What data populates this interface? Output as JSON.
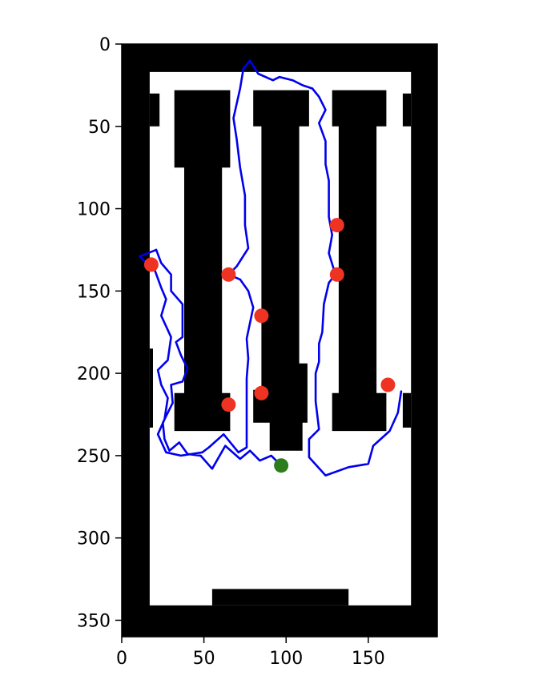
{
  "chart_data": {
    "type": "scatter",
    "title": "",
    "xlabel": "",
    "ylabel": "",
    "xlim": [
      0,
      192
    ],
    "ylim": [
      360,
      0
    ],
    "y_inverted": true,
    "grid": false,
    "xticks": [
      0,
      50,
      100,
      150
    ],
    "yticks": [
      0,
      50,
      100,
      150,
      200,
      250,
      300,
      350
    ],
    "occupancy_map": {
      "description": "background map; black = obstacle (occupied), white = free space",
      "free_color": "#ffffff",
      "obstacle_color": "#000000",
      "free_regions": [
        [
          [
            17,
            17
          ],
          [
            176,
            17
          ],
          [
            176,
            341
          ],
          [
            17,
            341
          ]
        ]
      ],
      "obstacles": [
        [
          [
            55,
            331
          ],
          [
            138,
            331
          ],
          [
            138,
            341
          ],
          [
            55,
            341
          ]
        ],
        [
          [
            17,
            30
          ],
          [
            23,
            30
          ],
          [
            23,
            50
          ],
          [
            17,
            50
          ]
        ],
        [
          [
            17,
            185
          ],
          [
            19,
            185
          ],
          [
            19,
            233
          ],
          [
            17,
            233
          ]
        ],
        [
          [
            171,
            30
          ],
          [
            176,
            30
          ],
          [
            176,
            50
          ],
          [
            171,
            50
          ]
        ],
        [
          [
            171,
            212
          ],
          [
            176,
            212
          ],
          [
            176,
            233
          ],
          [
            171,
            233
          ]
        ],
        [
          [
            32,
            28
          ],
          [
            66,
            28
          ],
          [
            66,
            75
          ],
          [
            61,
            75
          ],
          [
            61,
            212
          ],
          [
            66,
            212
          ],
          [
            66,
            235
          ],
          [
            32,
            235
          ],
          [
            32,
            212
          ],
          [
            38,
            212
          ],
          [
            38,
            75
          ],
          [
            32,
            75
          ]
        ],
        [
          [
            80,
            28
          ],
          [
            114,
            28
          ],
          [
            114,
            50
          ],
          [
            108,
            50
          ],
          [
            108,
            194
          ],
          [
            113,
            194
          ],
          [
            113,
            230
          ],
          [
            110,
            230
          ],
          [
            110,
            247
          ],
          [
            90,
            247
          ],
          [
            90,
            230
          ],
          [
            80,
            230
          ],
          [
            80,
            210
          ],
          [
            85,
            210
          ],
          [
            85,
            50
          ],
          [
            80,
            50
          ]
        ],
        [
          [
            128,
            28
          ],
          [
            161,
            28
          ],
          [
            161,
            50
          ],
          [
            155,
            50
          ],
          [
            155,
            212
          ],
          [
            161,
            212
          ],
          [
            161,
            235
          ],
          [
            128,
            235
          ],
          [
            128,
            212
          ],
          [
            132,
            212
          ],
          [
            132,
            50
          ],
          [
            128,
            50
          ]
        ]
      ]
    },
    "series": [
      {
        "type": "line",
        "color": "#0000ee",
        "points": [
          [
            96,
            255
          ],
          [
            91,
            250
          ],
          [
            84,
            253
          ],
          [
            78,
            247
          ],
          [
            72,
            252
          ],
          [
            63,
            244
          ],
          [
            55,
            258
          ],
          [
            48,
            250
          ],
          [
            40,
            249
          ],
          [
            35,
            242
          ],
          [
            29,
            247
          ],
          [
            26,
            240
          ],
          [
            25,
            230
          ],
          [
            31,
            218
          ],
          [
            30,
            207
          ],
          [
            37,
            205
          ],
          [
            40,
            197
          ],
          [
            36,
            189
          ],
          [
            33,
            181
          ],
          [
            37,
            178
          ],
          [
            37,
            158
          ],
          [
            30,
            150
          ],
          [
            30,
            140
          ],
          [
            24,
            133
          ],
          [
            21,
            125
          ],
          [
            16,
            127
          ],
          [
            11,
            129
          ],
          [
            16,
            134
          ],
          [
            20,
            137
          ],
          [
            24,
            148
          ],
          [
            27,
            155
          ],
          [
            24,
            165
          ],
          [
            30,
            178
          ],
          [
            28,
            192
          ],
          [
            22,
            198
          ],
          [
            24,
            207
          ],
          [
            28,
            215
          ],
          [
            26,
            228
          ],
          [
            22,
            237
          ],
          [
            27,
            248
          ],
          [
            36,
            250
          ],
          [
            49,
            248
          ],
          [
            53,
            245
          ],
          [
            62,
            237
          ],
          [
            71,
            248
          ],
          [
            76,
            245
          ],
          [
            76,
            226
          ],
          [
            76,
            203
          ],
          [
            77,
            191
          ],
          [
            76,
            179
          ],
          [
            80,
            160
          ],
          [
            77,
            150
          ],
          [
            72,
            143
          ],
          [
            65,
            140
          ],
          [
            70,
            135
          ],
          [
            77,
            124
          ],
          [
            75,
            110
          ],
          [
            75,
            92
          ],
          [
            72,
            75
          ],
          [
            70,
            58
          ],
          [
            68,
            45
          ],
          [
            72,
            27
          ],
          [
            74,
            15
          ],
          [
            78,
            10
          ],
          [
            83,
            18
          ],
          [
            92,
            22
          ],
          [
            96,
            20
          ],
          [
            104,
            22
          ],
          [
            110,
            25
          ],
          [
            116,
            27
          ],
          [
            120,
            32
          ],
          [
            124,
            40
          ],
          [
            120,
            48
          ],
          [
            124,
            59
          ],
          [
            124,
            73
          ],
          [
            126,
            83
          ],
          [
            126,
            94
          ],
          [
            126,
            105
          ],
          [
            128,
            116
          ],
          [
            126,
            127
          ],
          [
            130,
            140
          ],
          [
            126,
            145
          ],
          [
            123,
            158
          ],
          [
            122,
            175
          ],
          [
            120,
            182
          ],
          [
            120,
            193
          ],
          [
            118,
            200
          ],
          [
            118,
            217
          ],
          [
            120,
            234
          ],
          [
            114,
            240
          ],
          [
            114,
            251
          ],
          [
            124,
            262
          ],
          [
            138,
            257
          ],
          [
            150,
            255
          ],
          [
            153,
            244
          ],
          [
            163,
            235
          ],
          [
            168,
            224
          ],
          [
            170,
            211
          ]
        ]
      },
      {
        "type": "scatter",
        "color": "#ee3322",
        "points": [
          [
            18,
            134
          ],
          [
            65,
            140
          ],
          [
            65,
            219
          ],
          [
            85,
            165
          ],
          [
            85,
            212
          ],
          [
            131,
            110
          ],
          [
            131,
            140
          ],
          [
            162,
            207
          ]
        ]
      },
      {
        "type": "scatter",
        "color": "#2e7d1c",
        "points": [
          [
            97,
            256
          ]
        ]
      }
    ]
  }
}
